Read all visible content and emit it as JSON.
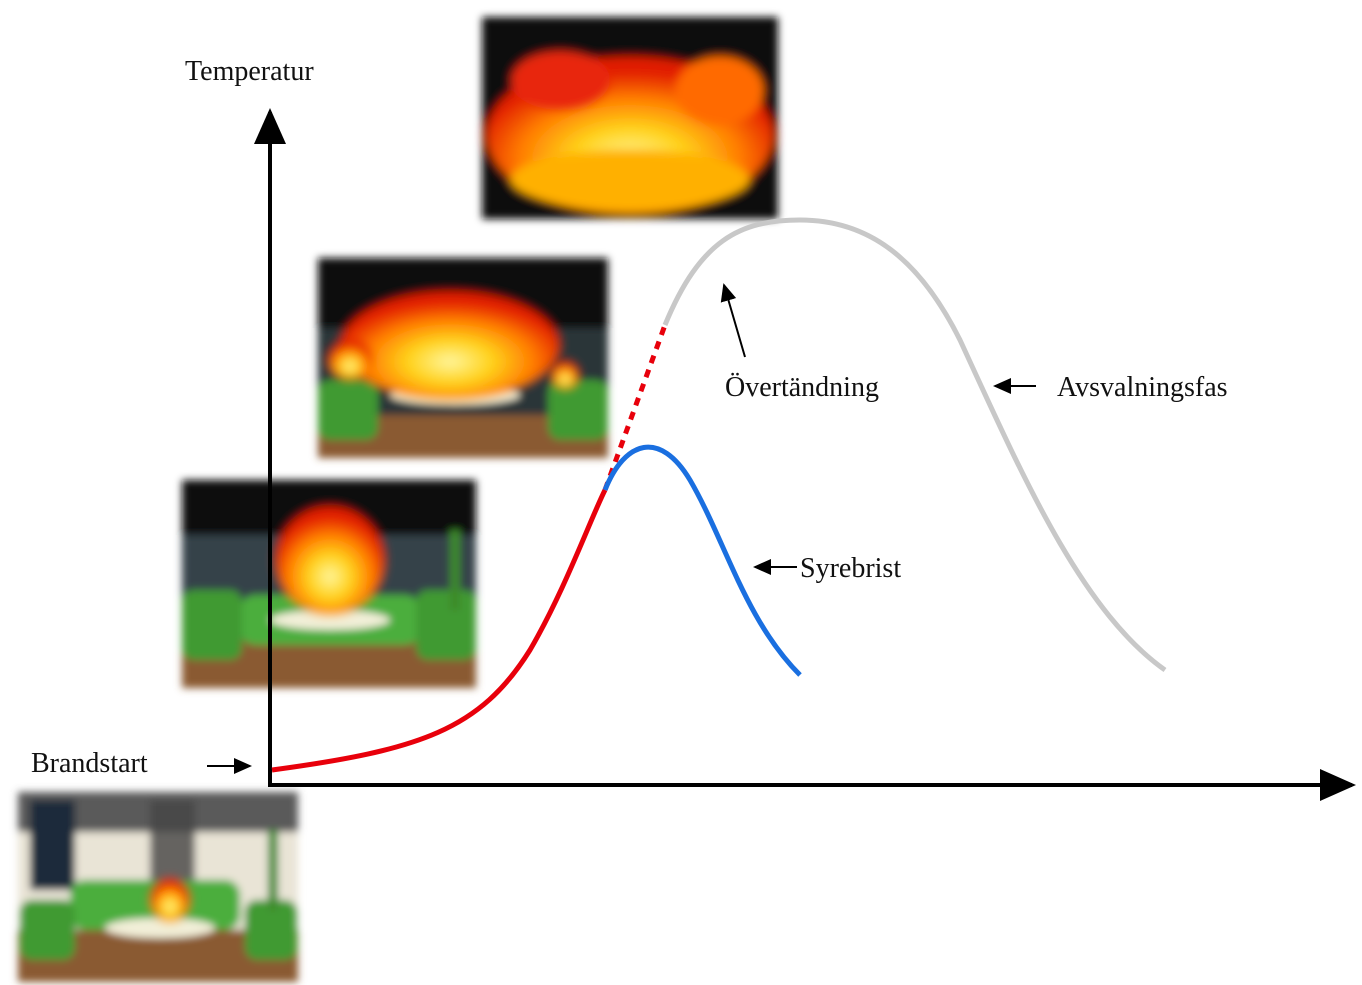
{
  "axis": {
    "y_label": "Temperatur"
  },
  "annotations": {
    "start": "Brandstart",
    "flashover": "Övertändning",
    "cooling": "Avsvalningsfas",
    "oxygen": "Syrebrist"
  }
}
